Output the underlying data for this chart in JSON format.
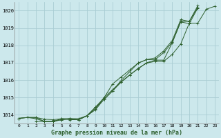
{
  "title": "Graphe pression niveau de la mer (hPa)",
  "background_color": "#cce8ec",
  "grid_color": "#aacdd4",
  "line_color": "#2d5f2d",
  "xlim": [
    -0.5,
    23.5
  ],
  "ylim": [
    1013.5,
    1020.5
  ],
  "yticks": [
    1014,
    1015,
    1016,
    1017,
    1018,
    1019,
    1020
  ],
  "xticks": [
    0,
    1,
    2,
    3,
    4,
    5,
    6,
    7,
    8,
    9,
    10,
    11,
    12,
    13,
    14,
    15,
    16,
    17,
    18,
    19,
    20,
    21,
    22,
    23
  ],
  "series": [
    {
      "x": [
        0,
        1,
        2,
        3,
        4,
        5,
        6,
        7,
        8,
        9,
        10,
        11,
        12,
        13,
        14,
        15,
        16,
        17,
        18,
        19,
        20,
        21,
        22,
        23
      ],
      "y": [
        1013.8,
        1013.85,
        1013.85,
        1013.75,
        1013.72,
        1013.78,
        1013.78,
        1013.78,
        1013.95,
        1014.35,
        1015.0,
        1015.45,
        1015.9,
        1016.3,
        1016.65,
        1017.0,
        1017.15,
        1017.15,
        1018.15,
        1019.35,
        1019.25,
        1020.15,
        null,
        null
      ]
    },
    {
      "x": [
        0,
        1,
        2,
        3,
        4,
        5,
        6,
        7,
        8,
        9,
        10,
        11,
        12,
        13,
        14,
        15,
        16,
        17,
        18,
        19,
        20,
        21,
        22,
        23
      ],
      "y": [
        1013.8,
        1013.85,
        1013.85,
        1013.62,
        1013.62,
        1013.72,
        1013.78,
        1013.72,
        1013.95,
        1014.45,
        1014.88,
        1015.38,
        1015.98,
        1016.48,
        1016.98,
        1017.18,
        1017.18,
        1017.58,
        1018.18,
        1019.38,
        1019.38,
        1020.18,
        null,
        null
      ]
    },
    {
      "x": [
        0,
        1,
        2,
        3,
        4,
        5,
        6,
        7,
        8,
        9,
        10,
        11,
        12,
        13,
        14,
        15,
        16,
        17,
        18,
        19,
        20,
        21,
        22,
        23
      ],
      "y": [
        1013.8,
        1013.85,
        1013.78,
        1013.62,
        1013.62,
        1013.78,
        1013.72,
        1013.72,
        1013.95,
        1014.45,
        1014.98,
        1015.78,
        1016.18,
        1016.58,
        1016.98,
        1017.18,
        1017.28,
        1017.68,
        1018.28,
        1019.48,
        1019.38,
        1020.28,
        null,
        null
      ]
    },
    {
      "x": [
        2,
        3,
        4,
        5,
        6,
        7,
        8,
        9,
        10,
        11,
        12,
        13,
        14,
        15,
        16,
        17,
        18,
        19,
        20,
        21,
        22,
        23
      ],
      "y": [
        1013.62,
        1013.62,
        1013.62,
        1013.72,
        1013.78,
        1013.72,
        1013.95,
        1014.3,
        1014.9,
        1015.38,
        1015.88,
        1016.28,
        1016.68,
        1016.98,
        1017.08,
        1017.08,
        1017.48,
        1018.08,
        1019.28,
        1019.28,
        1020.08,
        1020.25
      ]
    }
  ]
}
